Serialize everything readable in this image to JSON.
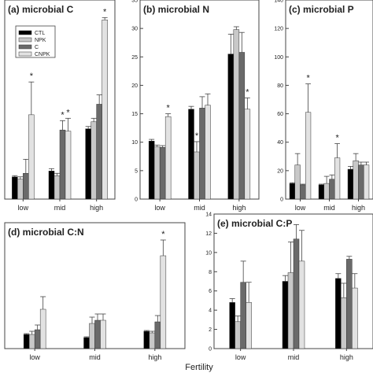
{
  "figure": {
    "xlabel": "Fertility"
  },
  "legend": [
    "CTL",
    "NPK",
    "C",
    "CNPK"
  ],
  "colors": [
    "#000000",
    "#c8c8c8",
    "#6a6a6a",
    "#e2e2e2"
  ],
  "chart_data": [
    {
      "panel": "a",
      "type": "bar",
      "title": "(a) microbial C",
      "categories": [
        "low",
        "mid",
        "high"
      ],
      "ylim": [
        0,
        17
      ],
      "yticks": [],
      "series": [
        {
          "name": "CTL",
          "values": [
            1.9,
            2.4,
            6.0
          ],
          "errors": [
            0.1,
            0.2,
            0.2
          ]
        },
        {
          "name": "NPK",
          "values": [
            1.7,
            2.0,
            6.6
          ],
          "errors": [
            0.2,
            0.2,
            0.3
          ]
        },
        {
          "name": "C",
          "values": [
            2.2,
            5.9,
            8.1
          ],
          "errors": [
            1.2,
            0.8,
            0.8
          ]
        },
        {
          "name": "CNPK",
          "values": [
            7.2,
            5.8,
            15.3
          ],
          "errors": [
            2.8,
            1.1,
            0.2
          ]
        }
      ],
      "stars": [
        [
          0,
          3
        ],
        [
          1,
          2
        ],
        [
          1,
          3
        ],
        [
          2,
          3
        ]
      ]
    },
    {
      "panel": "b",
      "type": "bar",
      "title": "(b) microbial N",
      "categories": [
        "low",
        "mid",
        "high"
      ],
      "ylim": [
        0,
        35
      ],
      "yticks": [
        "0",
        "5",
        "10",
        "15",
        "20",
        "25",
        "30",
        "35"
      ],
      "series": [
        {
          "name": "CTL",
          "values": [
            10.2,
            15.8,
            25.5
          ],
          "errors": [
            0.3,
            0.5,
            3.5
          ]
        },
        {
          "name": "NPK",
          "values": [
            9.2,
            8.3,
            29.8
          ],
          "errors": [
            0.3,
            1.8,
            0.5
          ]
        },
        {
          "name": "C",
          "values": [
            9.1,
            16.0,
            25.8
          ],
          "errors": [
            0.3,
            2.0,
            3.5
          ]
        },
        {
          "name": "CNPK",
          "values": [
            14.5,
            16.5,
            15.8
          ],
          "errors": [
            0.5,
            2.0,
            2.0
          ]
        }
      ],
      "stars": [
        [
          0,
          3
        ],
        [
          1,
          1
        ],
        [
          2,
          3
        ]
      ]
    },
    {
      "panel": "c",
      "type": "bar",
      "title": "(c) microbial P",
      "categories": [
        "low",
        "mid",
        "high"
      ],
      "ylim": [
        0,
        140
      ],
      "yticks": [
        "0",
        "20",
        "40",
        "60",
        "80",
        "100",
        "120",
        "140"
      ],
      "series": [
        {
          "name": "CTL",
          "values": [
            11,
            10,
            21
          ],
          "errors": [
            0.5,
            0.5,
            2
          ]
        },
        {
          "name": "NPK",
          "values": [
            24,
            11,
            27
          ],
          "errors": [
            8,
            5,
            5
          ]
        },
        {
          "name": "C",
          "values": [
            10,
            14,
            24
          ],
          "errors": [
            0.5,
            3,
            2
          ]
        },
        {
          "name": "CNPK",
          "values": [
            61,
            29,
            24
          ],
          "errors": [
            20,
            10,
            2
          ]
        }
      ],
      "stars": [
        [
          0,
          3
        ],
        [
          1,
          3
        ]
      ]
    },
    {
      "panel": "d",
      "type": "bar",
      "title": "(d) microbial C:N",
      "categories": [
        "low",
        "mid",
        "high"
      ],
      "ylim": [
        0,
        8
      ],
      "yticks": [],
      "series": [
        {
          "name": "CTL",
          "values": [
            0.9,
            0.7,
            1.1
          ],
          "errors": [
            0.05,
            0.05,
            0.05
          ]
        },
        {
          "name": "NPK",
          "values": [
            0.9,
            1.6,
            1.0
          ],
          "errors": [
            0.2,
            0.4,
            0.1
          ]
        },
        {
          "name": "C",
          "values": [
            1.2,
            1.8,
            1.7
          ],
          "errors": [
            0.3,
            0.4,
            0.4
          ]
        },
        {
          "name": "CNPK",
          "values": [
            2.5,
            1.8,
            5.9
          ],
          "errors": [
            0.8,
            0.4,
            1.0
          ]
        }
      ],
      "stars": [
        [
          2,
          3
        ]
      ]
    },
    {
      "panel": "e",
      "type": "bar",
      "title": "(e) microbial C:P",
      "categories": [
        "low",
        "mid",
        "high"
      ],
      "ylim": [
        0,
        14
      ],
      "yticks": [
        "0",
        "2",
        "4",
        "6",
        "8",
        "10",
        "12",
        "14"
      ],
      "series": [
        {
          "name": "CTL",
          "values": [
            4.8,
            7.0,
            7.3
          ],
          "errors": [
            0.4,
            0.6,
            0.5
          ]
        },
        {
          "name": "NPK",
          "values": [
            2.8,
            7.9,
            5.3
          ],
          "errors": [
            0.6,
            3.2,
            1.5
          ]
        },
        {
          "name": "C",
          "values": [
            6.9,
            11.4,
            9.3
          ],
          "errors": [
            2.2,
            1.5,
            0.3
          ]
        },
        {
          "name": "CNPK",
          "values": [
            4.8,
            9.1,
            6.3
          ],
          "errors": [
            2.1,
            3.2,
            1.5
          ]
        }
      ],
      "stars": []
    }
  ]
}
